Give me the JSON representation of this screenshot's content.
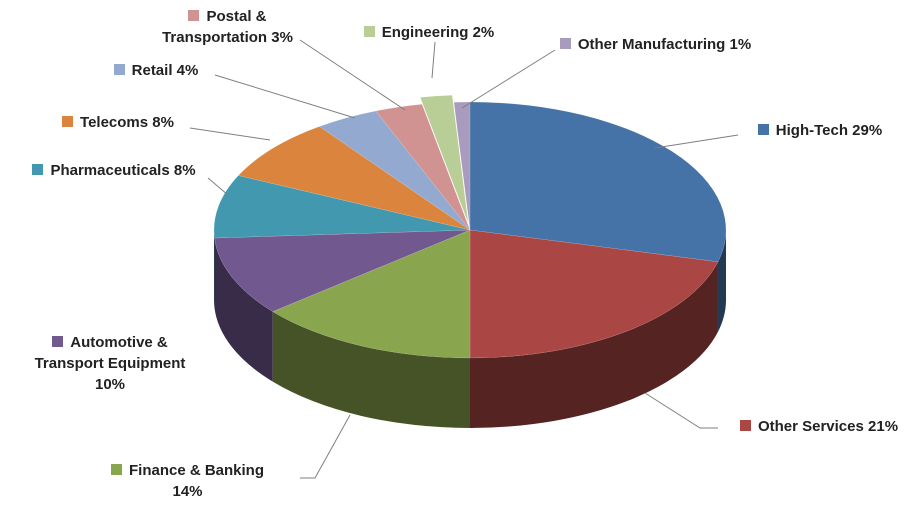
{
  "chart_data": {
    "type": "pie3d",
    "categories": [
      "High-Tech",
      "Other Services",
      "Finance & Banking",
      "Automotive & Transport Equipment",
      "Pharmaceuticals",
      "Telecoms",
      "Retail",
      "Postal & Transportation",
      "Engineering",
      "Other Manufacturing"
    ],
    "values": [
      29,
      21,
      14,
      10,
      8,
      8,
      4,
      3,
      2,
      1
    ],
    "value_labels": [
      "29%",
      "21%",
      "14%",
      "10%",
      "8%",
      "8%",
      "4%",
      "3%",
      "2%",
      "1%"
    ],
    "colors": [
      "#4572a7",
      "#aa4643",
      "#89a54e",
      "#71588f",
      "#4198af",
      "#db843d",
      "#93a9cf",
      "#d19392",
      "#b9cd96",
      "#a99bbd"
    ],
    "exploded": "Engineering"
  }
}
